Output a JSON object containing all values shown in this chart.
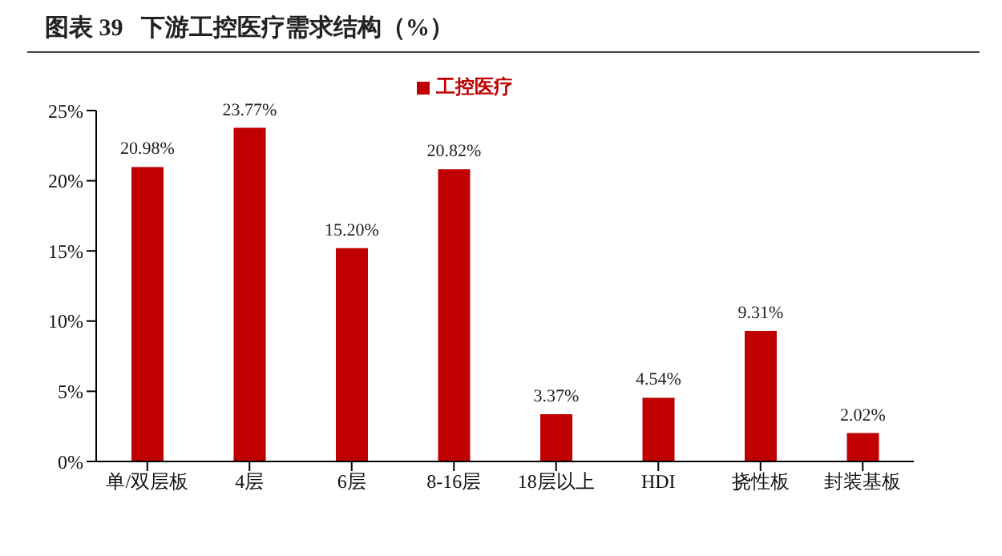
{
  "chart_data": {
    "type": "bar",
    "title": "图表 39   下游工控医疗需求结构（%）",
    "categories": [
      "单/双层板",
      "4层",
      "6层",
      "8-16层",
      "18层以上",
      "HDI",
      "挠性板",
      "封装基板"
    ],
    "series": [
      {
        "name": "工控医疗",
        "color": "#c00000",
        "values": [
          20.98,
          23.77,
          15.2,
          20.82,
          3.37,
          4.54,
          9.31,
          2.02
        ],
        "value_labels": [
          "20.98%",
          "23.77%",
          "15.20%",
          "20.82%",
          "3.37%",
          "4.54%",
          "9.31%",
          "2.02%"
        ]
      }
    ],
    "ylim": [
      0,
      25
    ],
    "yticks": [
      {
        "value": 0,
        "label": "0%"
      },
      {
        "value": 5,
        "label": "5%"
      },
      {
        "value": 10,
        "label": "10%"
      },
      {
        "value": 15,
        "label": "15%"
      },
      {
        "value": 20,
        "label": "20%"
      },
      {
        "value": 25,
        "label": "25%"
      }
    ],
    "grid": false,
    "legend": "top"
  }
}
